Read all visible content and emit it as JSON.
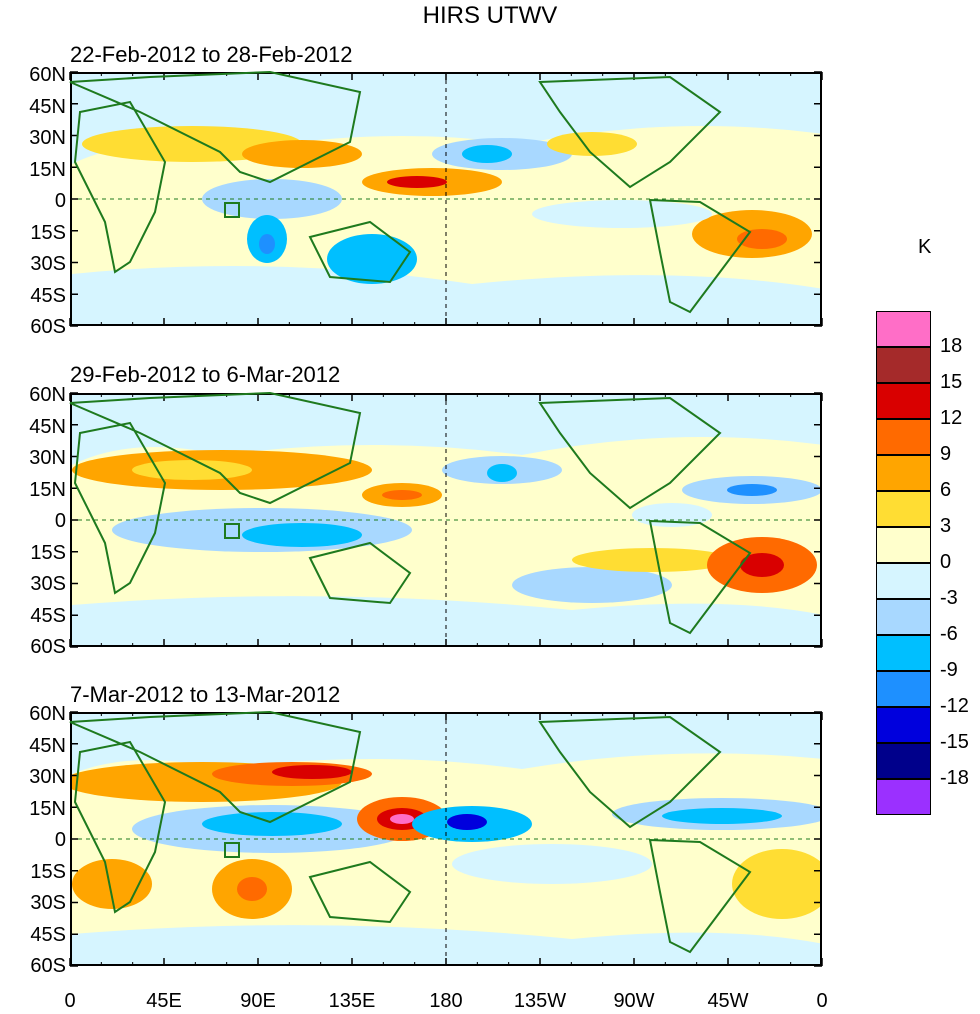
{
  "title": "HIRS UTWV",
  "panels": [
    {
      "subtitle": "22-Feb-2012 to 28-Feb-2012"
    },
    {
      "subtitle": "29-Feb-2012 to 6-Mar-2012"
    },
    {
      "subtitle": "7-Mar-2012 to 13-Mar-2012"
    }
  ],
  "y_axis_labels": [
    "60N",
    "45N",
    "30N",
    "15N",
    "0",
    "15S",
    "30S",
    "45S",
    "60S"
  ],
  "x_axis_labels": [
    "0",
    "45E",
    "90E",
    "135E",
    "180",
    "135W",
    "90W",
    "45W",
    "0"
  ],
  "colorbar": {
    "unit": "K",
    "levels": [
      "18",
      "15",
      "12",
      "9",
      "6",
      "3",
      "0",
      "-3",
      "-6",
      "-9",
      "-12",
      "-15",
      "-18"
    ],
    "colors": [
      "#ff6ec7",
      "#a52a2a",
      "#d90000",
      "#ff6a00",
      "#ffa500",
      "#ffdd33",
      "#ffffcc",
      "#d6f5ff",
      "#a8d8ff",
      "#00bfff",
      "#1e90ff",
      "#0000dd",
      "#00008b",
      "#9b30ff"
    ]
  },
  "colors": {
    "coast": "#1e7a1e",
    "axis": "#000000",
    "background": "#ffffff"
  }
}
